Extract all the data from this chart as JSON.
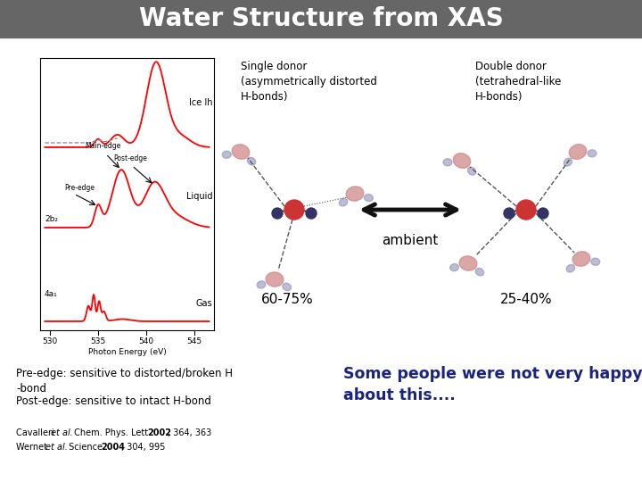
{
  "title": "Water Structure from XAS",
  "title_bg_color": "#666666",
  "title_text_color": "#ffffff",
  "bg_color": "#ffffff",
  "single_donor_label": "Single donor\n(asymmetrically distorted\nH-bonds)",
  "double_donor_label": "Double donor\n(tetrahedral-like\nH-bonds)",
  "ambient_label": "ambient",
  "single_pct": "60-75%",
  "double_pct": "25-40%",
  "pre_edge_text": "Pre-edge: sensitive to distorted/broken H\n-bond",
  "post_edge_text": "Post-edge: sensitive to intact H-bond",
  "happy_text": "Some people were not very happy\nabout this....",
  "happy_color": "#1a237e",
  "arrow_color": "#111111",
  "ref1": "Cavalleri et al. Chem. Phys. Lett. 2002, 364, 363",
  "ref2": "Wernet et al. Science 2004, 304, 995"
}
